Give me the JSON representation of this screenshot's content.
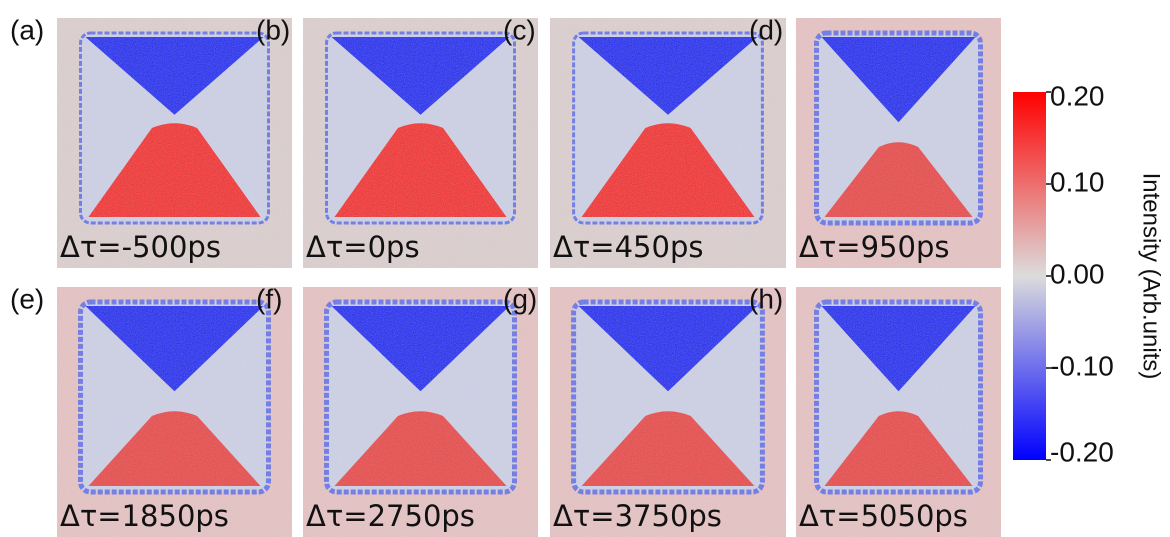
{
  "panels": [
    {
      "label": "(a)",
      "delay": "Δτ=-500ps"
    },
    {
      "label": "(b)",
      "delay": "Δτ=0ps"
    },
    {
      "label": "(c)",
      "delay": "Δτ=450ps"
    },
    {
      "label": "(d)",
      "delay": "Δτ=950ps"
    },
    {
      "label": "(e)",
      "delay": "Δτ=1850ps"
    },
    {
      "label": "(f)",
      "delay": "Δτ=2750ps"
    },
    {
      "label": "(g)",
      "delay": "Δτ=3750ps"
    },
    {
      "label": "(h)",
      "delay": "Δτ=5050ps"
    }
  ],
  "colorbar": {
    "label": "Intensity (Arb.units)",
    "lim": [
      -0.2,
      0.2
    ],
    "ticks": [
      {
        "value": 0.2,
        "label": "0.20"
      },
      {
        "value": 0.1,
        "label": "0.10"
      },
      {
        "value": 0,
        "label": "0.00"
      },
      {
        "value": -0.1,
        "label": "-0.10"
      },
      {
        "value": -0.2,
        "label": "-0.20"
      }
    ]
  }
}
